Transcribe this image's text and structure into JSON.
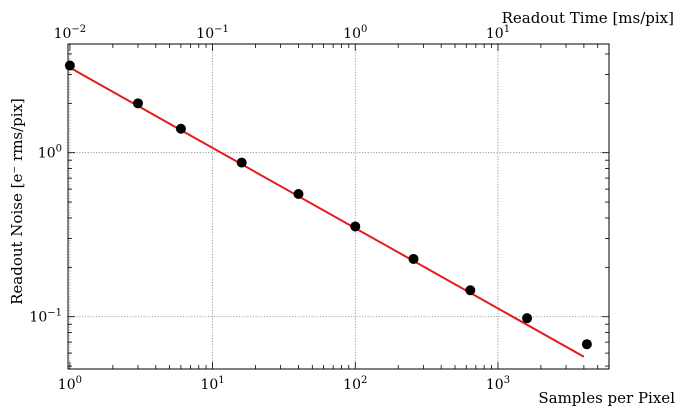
{
  "chart_data": {
    "type": "scatter",
    "ylabel": "Readout Noise [e⁻ rms/pix]",
    "xlabel": "Samples per Pixel",
    "x2label": "Readout Time [ms/pix]",
    "xscale": "log",
    "yscale": "log",
    "x2scale": "log",
    "grid": true,
    "xlim": [
      0.97,
      6000
    ],
    "ylim": [
      0.048,
      4.6
    ],
    "x2lim": [
      0.0097,
      60
    ],
    "xticks": [
      {
        "value": 1,
        "base": "10",
        "exp": "0"
      },
      {
        "value": 10,
        "base": "10",
        "exp": "1"
      },
      {
        "value": 100,
        "base": "10",
        "exp": "2"
      },
      {
        "value": 1000,
        "base": "10",
        "exp": "3"
      }
    ],
    "x2ticks": [
      {
        "value": 0.01,
        "base": "10",
        "exp": "−2"
      },
      {
        "value": 0.1,
        "base": "10",
        "exp": "−1"
      },
      {
        "value": 1,
        "base": "10",
        "exp": "0"
      },
      {
        "value": 10,
        "base": "10",
        "exp": "1"
      }
    ],
    "yticks": [
      {
        "value": 0.1,
        "base": "10",
        "exp": "−1"
      },
      {
        "value": 1,
        "base": "10",
        "exp": "0"
      }
    ],
    "series": [
      {
        "type": "scatter",
        "x": [
          1,
          3,
          6,
          16,
          40,
          100,
          256,
          640,
          1600,
          4200
        ],
        "y": [
          3.4,
          2.0,
          1.4,
          0.87,
          0.56,
          0.355,
          0.225,
          0.145,
          0.098,
          0.068
        ]
      },
      {
        "type": "line",
        "x": [
          1,
          4000
        ],
        "y": [
          3.3,
          0.057
        ]
      }
    ],
    "colors": {
      "points": "#000000",
      "fit": "#e41a1c",
      "grid": "#888888"
    }
  }
}
